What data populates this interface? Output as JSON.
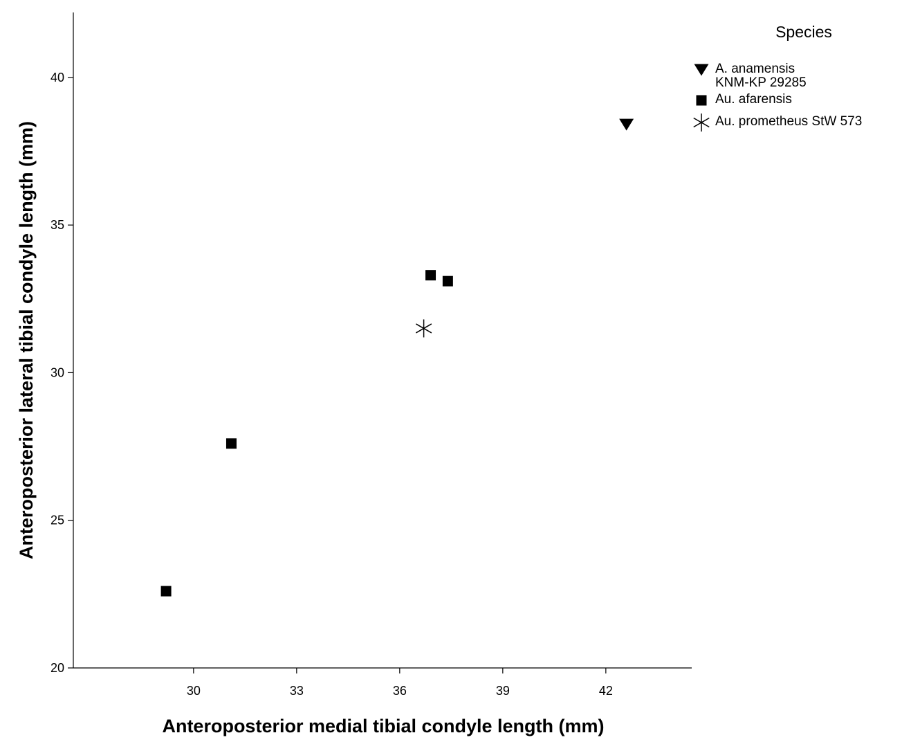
{
  "chart_data": {
    "type": "scatter",
    "title": "",
    "xlabel": "Anteroposterior medial tibial condyle length (mm)",
    "ylabel": "Anteroposterior lateral tibial condyle length (mm)",
    "xlim": [
      26.5,
      44.5
    ],
    "ylim": [
      20,
      42.2
    ],
    "xticks": [
      30,
      33,
      36,
      39,
      42
    ],
    "yticks": [
      20,
      25,
      30,
      35,
      40
    ],
    "grid": false,
    "legend": {
      "title": "Species",
      "position": "top-right, outside plot"
    },
    "series": [
      {
        "name": "A. anamensis KNM-KP 29285",
        "name_lines": [
          "A. anamensis",
          "KNM-KP 29285"
        ],
        "marker": "triangle-down",
        "color": "#000000",
        "points": [
          {
            "x": 42.6,
            "y": 38.4
          }
        ]
      },
      {
        "name": "Au. afarensis",
        "name_lines": [
          "Au. afarensis"
        ],
        "marker": "square",
        "color": "#000000",
        "points": [
          {
            "x": 36.9,
            "y": 33.3
          },
          {
            "x": 37.4,
            "y": 33.1
          },
          {
            "x": 31.1,
            "y": 27.6
          },
          {
            "x": 29.2,
            "y": 22.6
          }
        ]
      },
      {
        "name": "Au. prometheus StW 573",
        "name_lines": [
          "Au. prometheus StW 573"
        ],
        "marker": "asterisk",
        "color": "#000000",
        "points": [
          {
            "x": 36.7,
            "y": 31.5
          }
        ]
      }
    ]
  }
}
